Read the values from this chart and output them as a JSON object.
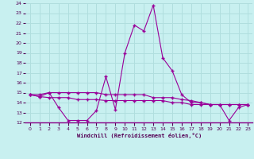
{
  "title": "",
  "xlabel": "Windchill (Refroidissement éolien,°C)",
  "background_color": "#c8f0f0",
  "grid_color": "#b0dede",
  "line_color": "#990099",
  "x_values": [
    0,
    1,
    2,
    3,
    4,
    5,
    6,
    7,
    8,
    9,
    10,
    11,
    12,
    13,
    14,
    15,
    16,
    17,
    18,
    19,
    20,
    21,
    22,
    23
  ],
  "series1": [
    14.8,
    14.6,
    15.0,
    13.5,
    12.2,
    12.2,
    12.2,
    13.2,
    16.6,
    13.3,
    19.0,
    21.8,
    21.2,
    23.8,
    18.5,
    17.2,
    14.8,
    14.0,
    14.0,
    13.8,
    13.8,
    12.2,
    13.5,
    13.8
  ],
  "series2": [
    14.8,
    14.8,
    15.0,
    15.0,
    15.0,
    15.0,
    15.0,
    15.0,
    14.8,
    14.8,
    14.8,
    14.8,
    14.8,
    14.5,
    14.5,
    14.5,
    14.3,
    14.2,
    14.0,
    13.8,
    13.8,
    13.8,
    13.8,
    13.8
  ],
  "series3": [
    14.8,
    14.6,
    14.5,
    14.5,
    14.5,
    14.3,
    14.3,
    14.3,
    14.2,
    14.2,
    14.2,
    14.2,
    14.2,
    14.2,
    14.2,
    14.0,
    14.0,
    13.8,
    13.8,
    13.8,
    13.8,
    13.8,
    13.8,
    13.8
  ],
  "ylim": [
    12,
    24
  ],
  "xlim": [
    -0.5,
    23.5
  ],
  "yticks": [
    12,
    13,
    14,
    15,
    16,
    17,
    18,
    19,
    20,
    21,
    22,
    23,
    24
  ],
  "xticks": [
    0,
    1,
    2,
    3,
    4,
    5,
    6,
    7,
    8,
    9,
    10,
    11,
    12,
    13,
    14,
    15,
    16,
    17,
    18,
    19,
    20,
    21,
    22,
    23
  ],
  "spine_color": "#880088"
}
